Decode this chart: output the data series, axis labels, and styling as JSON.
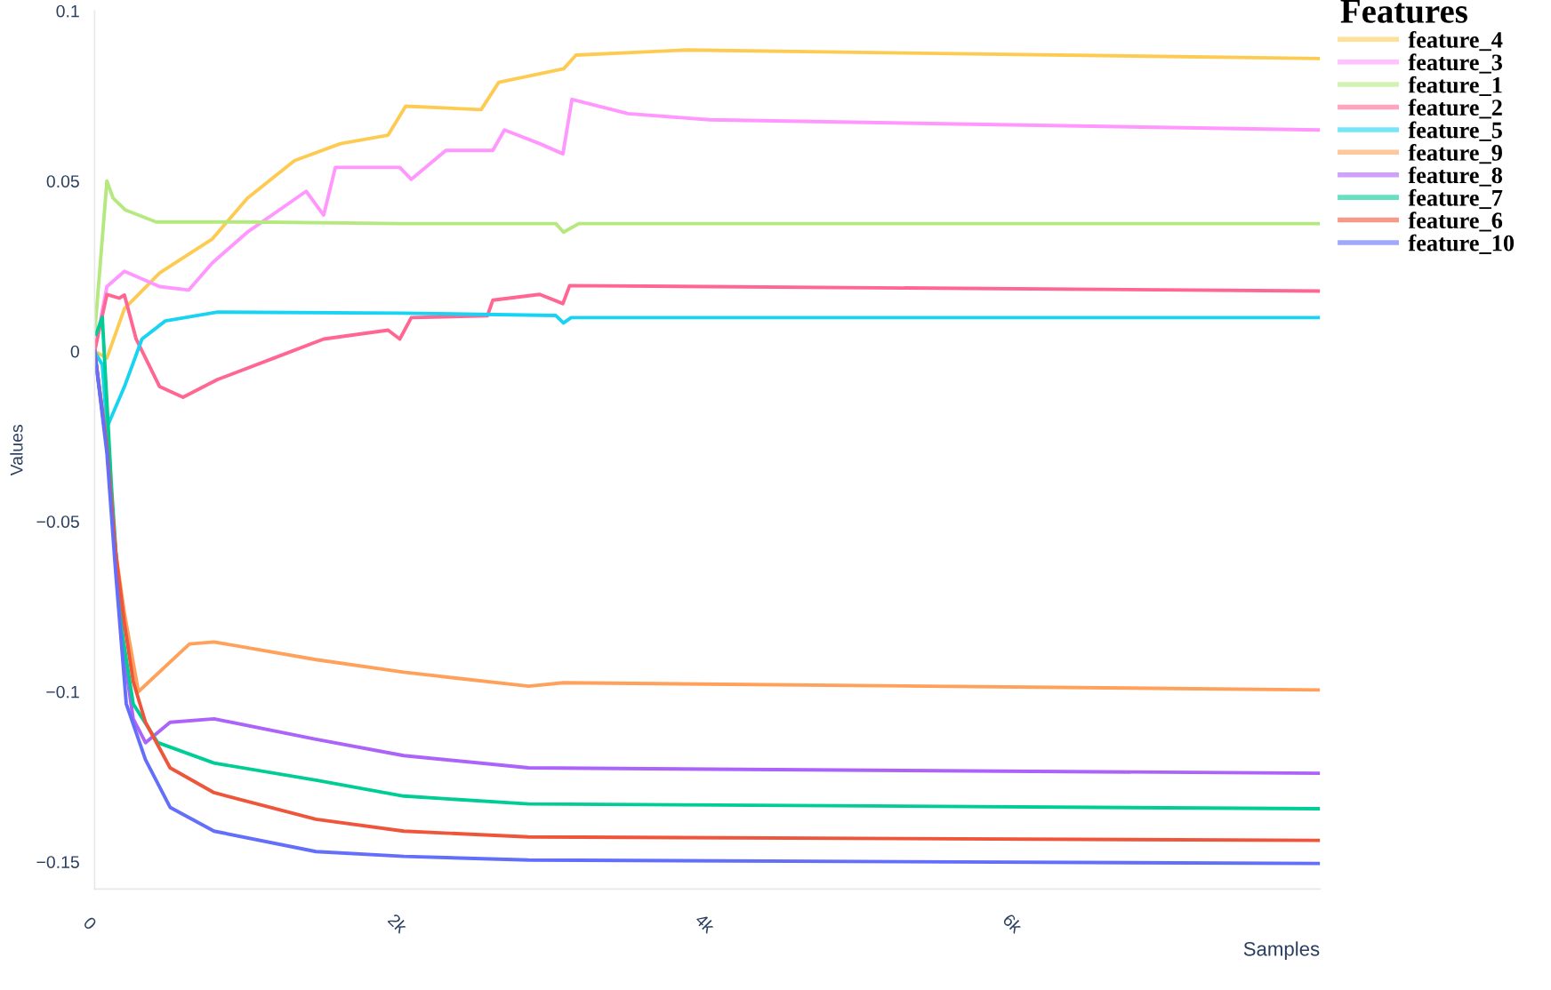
{
  "chart_data": {
    "type": "line",
    "xlabel": "Samples",
    "ylabel": "Values",
    "legend_title": "Features",
    "legend": "top right",
    "grid": false,
    "marker": "none",
    "line_style": "solid",
    "xlim": [
      0,
      7970
    ],
    "ylim": [
      -0.158,
      0.1
    ],
    "xticks": [
      {
        "value": 0,
        "label": "0"
      },
      {
        "value": 2000,
        "label": "2k"
      },
      {
        "value": 4000,
        "label": "4k"
      },
      {
        "value": 6000,
        "label": "6k"
      }
    ],
    "yticks": [
      {
        "value": -0.15,
        "label": "−0.15"
      },
      {
        "value": -0.1,
        "label": "−0.1"
      },
      {
        "value": -0.05,
        "label": "−0.05"
      },
      0,
      0.05,
      0.1
    ],
    "series": [
      {
        "name": "feature_4",
        "color": "#fecb52",
        "x": [
          0,
          80,
          194,
          423,
          766,
          994,
          1300,
          1600,
          1909,
          2023,
          2514,
          2629,
          3051,
          3131,
          3851,
          7970
        ],
        "values": [
          0,
          -0.002,
          0.0125,
          0.023,
          0.033,
          0.045,
          0.056,
          0.061,
          0.0635,
          0.072,
          0.071,
          0.079,
          0.083,
          0.087,
          0.0885,
          0.086
        ]
      },
      {
        "name": "feature_3",
        "color": "#ff97ff",
        "x": [
          0,
          80,
          194,
          423,
          613,
          766,
          994,
          1376,
          1490,
          1566,
          1985,
          2060,
          2285,
          2590,
          2666,
          2895,
          3046,
          3105,
          3470,
          4000,
          7970
        ],
        "values": [
          0,
          0.019,
          0.0235,
          0.019,
          0.018,
          0.026,
          0.035,
          0.047,
          0.04,
          0.054,
          0.054,
          0.0505,
          0.059,
          0.059,
          0.065,
          0.061,
          0.058,
          0.074,
          0.0698,
          0.068,
          0.065
        ]
      },
      {
        "name": "feature_1",
        "color": "#b6e880",
        "x": [
          0,
          80,
          120,
          200,
          400,
          1000,
          2000,
          3000,
          3050,
          3150,
          7970
        ],
        "values": [
          0.005,
          0.05,
          0.045,
          0.0415,
          0.038,
          0.038,
          0.0375,
          0.0375,
          0.035,
          0.0375,
          0.0375
        ]
      },
      {
        "name": "feature_2",
        "color": "#ff6692",
        "x": [
          0,
          80,
          160,
          194,
          270,
          423,
          575,
          800,
          1190,
          1490,
          1909,
          1985,
          2060,
          2555,
          2590,
          2895,
          3046,
          3090,
          7970
        ],
        "values": [
          0,
          0.0167,
          0.0156,
          0.0165,
          0.0036,
          -0.0104,
          -0.0135,
          -0.0083,
          -0.0016,
          0.0036,
          0.0062,
          0.0036,
          0.0099,
          0.0104,
          0.015,
          0.0167,
          0.014,
          0.0193,
          0.0177
        ]
      },
      {
        "name": "feature_5",
        "color": "#19d3f3",
        "x": [
          0,
          50,
          80,
          194,
          308,
          460,
          800,
          2000,
          3000,
          3050,
          3100,
          7970
        ],
        "values": [
          0,
          -0.004,
          -0.0224,
          -0.0104,
          0.0036,
          0.0089,
          0.0115,
          0.0112,
          0.0105,
          0.0083,
          0.0099,
          0.0099
        ]
      },
      {
        "name": "feature_9",
        "color": "#ffa15a",
        "x": [
          0,
          80,
          137,
          194,
          285,
          617,
          777,
          1440,
          2011,
          2823,
          3050,
          7970
        ],
        "values": [
          0,
          -0.028,
          -0.059,
          -0.077,
          -0.1,
          -0.086,
          -0.0854,
          -0.0906,
          -0.0943,
          -0.0984,
          -0.0974,
          -0.0995
        ]
      },
      {
        "name": "feature_8",
        "color": "#ab63fa",
        "x": [
          0,
          80,
          137,
          194,
          251,
          331,
          491,
          777,
          1440,
          2011,
          2823,
          7970
        ],
        "values": [
          0,
          -0.028,
          -0.059,
          -0.09,
          -0.108,
          -0.115,
          -0.109,
          -0.108,
          -0.114,
          -0.1188,
          -0.1224,
          -0.124
        ]
      },
      {
        "name": "feature_7",
        "color": "#00cc96",
        "x": [
          10,
          50,
          110,
          170,
          251,
          411,
          777,
          1440,
          2011,
          2823,
          7970
        ],
        "values": [
          0.005,
          0.01,
          -0.04,
          -0.08,
          -0.1036,
          -0.115,
          -0.121,
          -0.126,
          -0.1307,
          -0.133,
          -0.1344
        ]
      },
      {
        "name": "feature_6",
        "color": "#ef553b",
        "x": [
          0,
          80,
          137,
          194,
          251,
          331,
          491,
          777,
          1440,
          2011,
          2823,
          7970
        ],
        "values": [
          0,
          -0.028,
          -0.059,
          -0.08,
          -0.097,
          -0.109,
          -0.1224,
          -0.1297,
          -0.1375,
          -0.141,
          -0.1427,
          -0.1437
        ]
      },
      {
        "name": "feature_10",
        "color": "#636efa",
        "x": [
          0,
          80,
          137,
          206,
          331,
          491,
          777,
          1440,
          2011,
          2823,
          7970
        ],
        "values": [
          0,
          -0.03,
          -0.065,
          -0.1036,
          -0.12,
          -0.134,
          -0.141,
          -0.147,
          -0.1484,
          -0.1495,
          -0.1505
        ]
      }
    ]
  }
}
